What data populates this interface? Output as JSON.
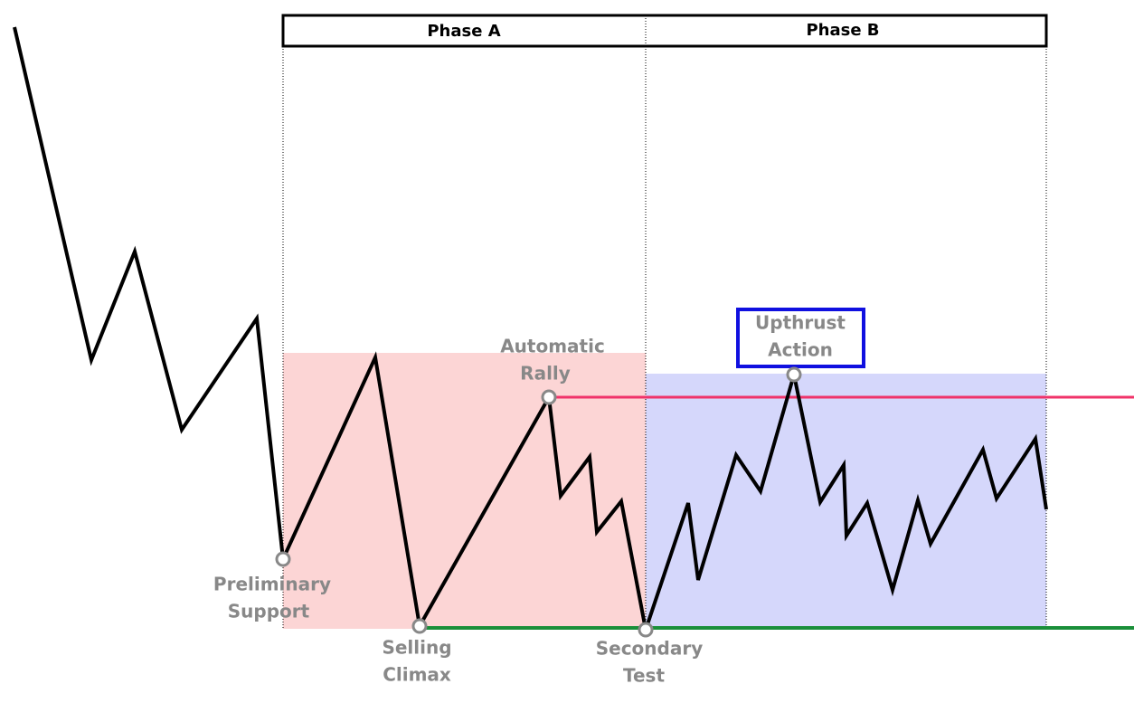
{
  "header": {
    "phases": [
      "Phase A",
      "Phase B"
    ]
  },
  "annotations": [
    {
      "lines": [
        "Preliminary",
        "Support"
      ]
    },
    {
      "lines": [
        "Selling",
        "Climax"
      ]
    },
    {
      "lines": [
        "Automatic",
        "Rally"
      ]
    },
    {
      "lines": [
        "Secondary",
        "Test"
      ]
    },
    {
      "lines": [
        "Upthrust",
        "Action"
      ]
    }
  ]
}
